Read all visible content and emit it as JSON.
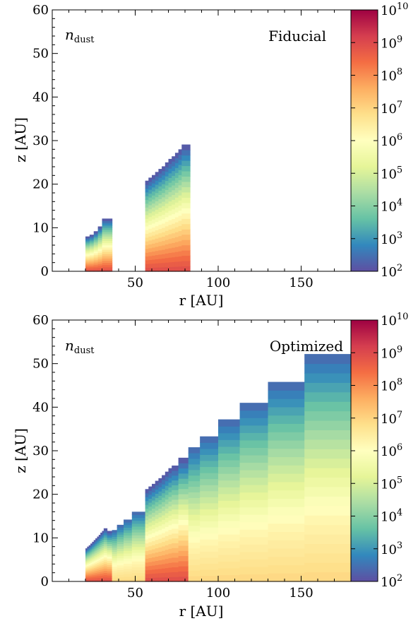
{
  "chart_data": [
    {
      "type": "heatmap",
      "panel_label": "Fiducial",
      "quantity": "n",
      "quantity_sub": "dust",
      "xlabel": "r [AU]",
      "ylabel": "z [AU]",
      "xlim": [
        0,
        180
      ],
      "ylim": [
        0,
        60
      ],
      "xticks": [
        50,
        100,
        150
      ],
      "yticks": [
        0,
        10,
        20,
        30,
        40,
        50,
        60
      ],
      "colorbar": {
        "scale": "log",
        "min_exp": 2,
        "max_exp": 10,
        "tick_exps": [
          2,
          3,
          4,
          5,
          6,
          7,
          8,
          9,
          10
        ],
        "tick_base": "10"
      },
      "columns": [
        {
          "r0": 20,
          "r1": 22.5,
          "zmax": 8.0,
          "hot": 1.0
        },
        {
          "r0": 22.5,
          "r1": 25,
          "zmax": 8.4,
          "hot": 1.0
        },
        {
          "r0": 25,
          "r1": 27.5,
          "zmax": 9.2,
          "hot": 1.0
        },
        {
          "r0": 27.5,
          "r1": 30,
          "zmax": 10.3,
          "hot": 1.0
        },
        {
          "r0": 30,
          "r1": 36,
          "zmax": 12.1,
          "hot": 1.0
        },
        {
          "r0": 56,
          "r1": 58,
          "zmax": 20.8,
          "hot": 1.0
        },
        {
          "r0": 58,
          "r1": 60,
          "zmax": 21.5,
          "hot": 1.0
        },
        {
          "r0": 60,
          "r1": 62,
          "zmax": 22.1,
          "hot": 1.0
        },
        {
          "r0": 62,
          "r1": 64,
          "zmax": 22.8,
          "hot": 1.0
        },
        {
          "r0": 64,
          "r1": 66,
          "zmax": 23.5,
          "hot": 1.0
        },
        {
          "r0": 66,
          "r1": 68,
          "zmax": 24.1,
          "hot": 1.0
        },
        {
          "r0": 68,
          "r1": 70,
          "zmax": 25.0,
          "hot": 1.0
        },
        {
          "r0": 70,
          "r1": 72,
          "zmax": 25.8,
          "hot": 1.0
        },
        {
          "r0": 72,
          "r1": 74,
          "zmax": 26.4,
          "hot": 1.0
        },
        {
          "r0": 74,
          "r1": 76,
          "zmax": 27.2,
          "hot": 1.0
        },
        {
          "r0": 76,
          "r1": 78,
          "zmax": 28.0,
          "hot": 1.0
        },
        {
          "r0": 78,
          "r1": 83,
          "zmax": 29.1,
          "hot": 1.0
        }
      ]
    },
    {
      "type": "heatmap",
      "panel_label": "Optimized",
      "quantity": "n",
      "quantity_sub": "dust",
      "xlabel": "r [AU]",
      "ylabel": "z [AU]",
      "xlim": [
        0,
        180
      ],
      "ylim": [
        0,
        60
      ],
      "xticks": [
        50,
        100,
        150
      ],
      "yticks": [
        0,
        10,
        20,
        30,
        40,
        50,
        60
      ],
      "colorbar": {
        "scale": "log",
        "min_exp": 2,
        "max_exp": 10,
        "tick_exps": [
          2,
          3,
          4,
          5,
          6,
          7,
          8,
          9,
          10
        ],
        "tick_base": "10"
      },
      "columns": [
        {
          "r0": 20,
          "r1": 21,
          "zmax": 7.6,
          "hot": 1.0
        },
        {
          "r0": 21,
          "r1": 22,
          "zmax": 8.0,
          "hot": 1.0
        },
        {
          "r0": 22,
          "r1": 23,
          "zmax": 8.3,
          "hot": 1.0
        },
        {
          "r0": 23,
          "r1": 24,
          "zmax": 8.7,
          "hot": 1.0
        },
        {
          "r0": 24,
          "r1": 25,
          "zmax": 9.1,
          "hot": 1.0
        },
        {
          "r0": 25,
          "r1": 26,
          "zmax": 9.5,
          "hot": 1.0
        },
        {
          "r0": 26,
          "r1": 27,
          "zmax": 9.9,
          "hot": 1.0
        },
        {
          "r0": 27,
          "r1": 28,
          "zmax": 10.3,
          "hot": 1.0
        },
        {
          "r0": 28,
          "r1": 29,
          "zmax": 10.7,
          "hot": 1.0
        },
        {
          "r0": 29,
          "r1": 30,
          "zmax": 11.2,
          "hot": 1.0
        },
        {
          "r0": 30,
          "r1": 31,
          "zmax": 11.6,
          "hot": 1.0
        },
        {
          "r0": 31,
          "r1": 33,
          "zmax": 12.2,
          "hot": 1.0
        },
        {
          "r0": 33,
          "r1": 36,
          "zmax": 11.6,
          "hot": 1.0
        },
        {
          "r0": 36,
          "r1": 39,
          "zmax": 11.8,
          "hot": 0.0
        },
        {
          "r0": 39,
          "r1": 43,
          "zmax": 13.0,
          "hot": 0.0
        },
        {
          "r0": 43,
          "r1": 48,
          "zmax": 14.2,
          "hot": 0.0
        },
        {
          "r0": 48,
          "r1": 56,
          "zmax": 16.0,
          "hot": 0.0
        },
        {
          "r0": 56,
          "r1": 58,
          "zmax": 21.2,
          "hot": 1.0
        },
        {
          "r0": 58,
          "r1": 60,
          "zmax": 21.8,
          "hot": 1.0
        },
        {
          "r0": 60,
          "r1": 62,
          "zmax": 22.4,
          "hot": 1.0
        },
        {
          "r0": 62,
          "r1": 64,
          "zmax": 23.1,
          "hot": 1.0
        },
        {
          "r0": 64,
          "r1": 66,
          "zmax": 23.7,
          "hot": 1.0
        },
        {
          "r0": 66,
          "r1": 68,
          "zmax": 24.4,
          "hot": 1.0
        },
        {
          "r0": 68,
          "r1": 70,
          "zmax": 25.2,
          "hot": 1.0
        },
        {
          "r0": 70,
          "r1": 72,
          "zmax": 26.0,
          "hot": 1.0
        },
        {
          "r0": 72,
          "r1": 76,
          "zmax": 26.6,
          "hot": 1.0
        },
        {
          "r0": 76,
          "r1": 82,
          "zmax": 28.4,
          "hot": 1.0
        },
        {
          "r0": 82,
          "r1": 89,
          "zmax": 30.8,
          "hot": 0.0
        },
        {
          "r0": 89,
          "r1": 100,
          "zmax": 33.3,
          "hot": 0.0
        },
        {
          "r0": 100,
          "r1": 113,
          "zmax": 37.2,
          "hot": 0.0
        },
        {
          "r0": 113,
          "r1": 130,
          "zmax": 41.0,
          "hot": 0.0
        },
        {
          "r0": 130,
          "r1": 152,
          "zmax": 45.8,
          "hot": 0.0
        },
        {
          "r0": 152,
          "r1": 180,
          "zmax": 52.2,
          "hot": 0.0
        }
      ]
    }
  ]
}
